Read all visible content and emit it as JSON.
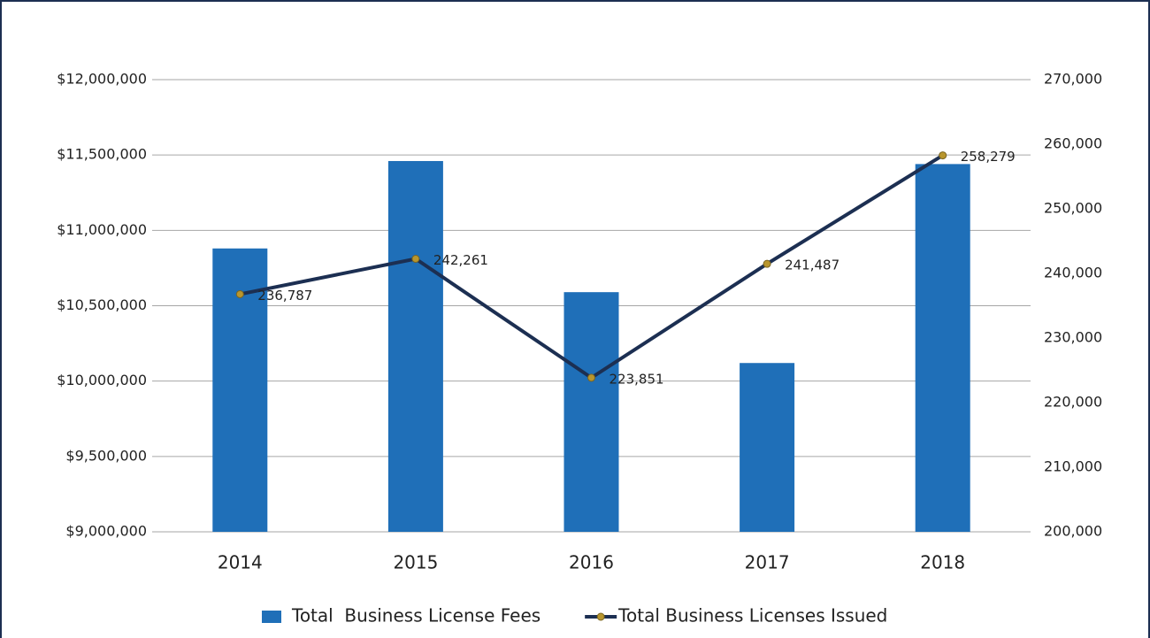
{
  "chart_data": {
    "type": "bar",
    "categories": [
      "2014",
      "2015",
      "2016",
      "2017",
      "2018"
    ],
    "series": [
      {
        "name": "Total  Business License Fees",
        "type": "bar",
        "color": "#1f6fb8",
        "values": [
          10880000,
          11460000,
          10590000,
          10120000,
          11440000
        ]
      },
      {
        "name": "Total Business Licenses Issued",
        "type": "line",
        "axis": "y2",
        "color": "#1c2f52",
        "marker_color": "#b8962e",
        "values": [
          236787,
          242261,
          223851,
          241487,
          258279
        ],
        "value_labels": [
          "236,787",
          "242,261",
          "223,851",
          "241,487",
          "258,279"
        ]
      }
    ],
    "ylim": [
      9000000,
      12000000
    ],
    "yticks": [
      {
        "value": 9000000,
        "label": "$9,000,000"
      },
      {
        "value": 9500000,
        "label": "$9,500,000"
      },
      {
        "value": 10000000,
        "label": "$10,000,000"
      },
      {
        "value": 10500000,
        "label": "$10,500,000"
      },
      {
        "value": 11000000,
        "label": "$11,000,000"
      },
      {
        "value": 11500000,
        "label": "$11,500,000"
      },
      {
        "value": 12000000,
        "label": "$12,000,000"
      }
    ],
    "y2lim": [
      200000,
      270000
    ],
    "y2ticks": [
      {
        "value": 200000,
        "label": "200,000"
      },
      {
        "value": 210000,
        "label": "210,000"
      },
      {
        "value": 220000,
        "label": "220,000"
      },
      {
        "value": 230000,
        "label": "230,000"
      },
      {
        "value": 240000,
        "label": "240,000"
      },
      {
        "value": 250000,
        "label": "250,000"
      },
      {
        "value": 260000,
        "label": "260,000"
      },
      {
        "value": 270000,
        "label": "270,000"
      }
    ],
    "grid": true,
    "legend": "bottom"
  }
}
